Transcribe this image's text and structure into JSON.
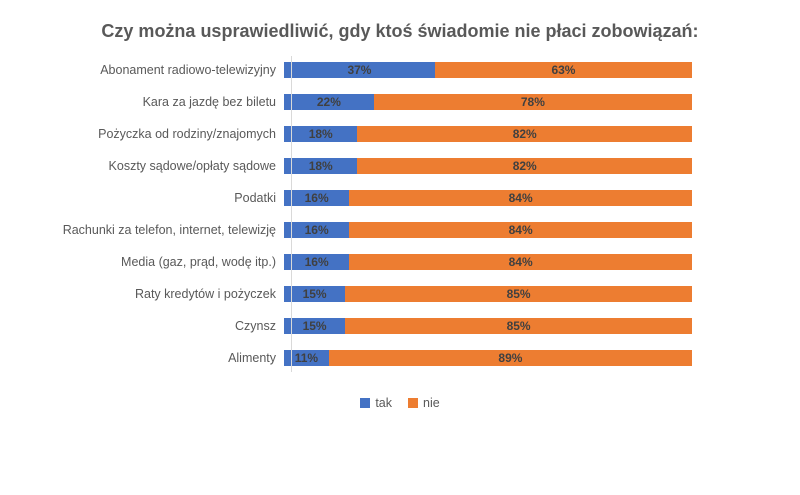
{
  "title": "Czy można usprawiedliwić, gdy ktoś świadomie nie płaci zobowiązań:",
  "chart_data": {
    "type": "bar",
    "orientation": "horizontal-stacked",
    "title": "Czy można usprawiedliwić, gdy ktoś świadomie nie płaci zobowiązań:",
    "categories": [
      "Abonament radiowo-telewizyjny",
      "Kara za jazdę bez biletu",
      "Pożyczka od rodziny/znajomych",
      "Koszty sądowe/opłaty sądowe",
      "Podatki",
      "Rachunki za telefon, internet, telewizję",
      "Media (gaz, prąd, wodę itp.)",
      "Raty kredytów i pożyczek",
      "Czynsz",
      "Alimenty"
    ],
    "series": [
      {
        "name": "tak",
        "color": "#4472C4",
        "values": [
          37,
          22,
          18,
          18,
          16,
          16,
          16,
          15,
          15,
          11
        ]
      },
      {
        "name": "nie",
        "color": "#ED7D31",
        "values": [
          63,
          78,
          82,
          82,
          84,
          84,
          84,
          85,
          85,
          89
        ]
      }
    ],
    "value_label_suffix": "%",
    "xlim": [
      0,
      100
    ],
    "grid": false,
    "legend_position": "bottom",
    "colors": {
      "title_text": "#595959",
      "category_text": "#595959",
      "value_label_text": "#404040",
      "axis_line": "#d9d9d9"
    }
  },
  "legend": {
    "items": [
      {
        "label": "tak",
        "color": "#4472C4"
      },
      {
        "label": "nie",
        "color": "#ED7D31"
      }
    ]
  }
}
